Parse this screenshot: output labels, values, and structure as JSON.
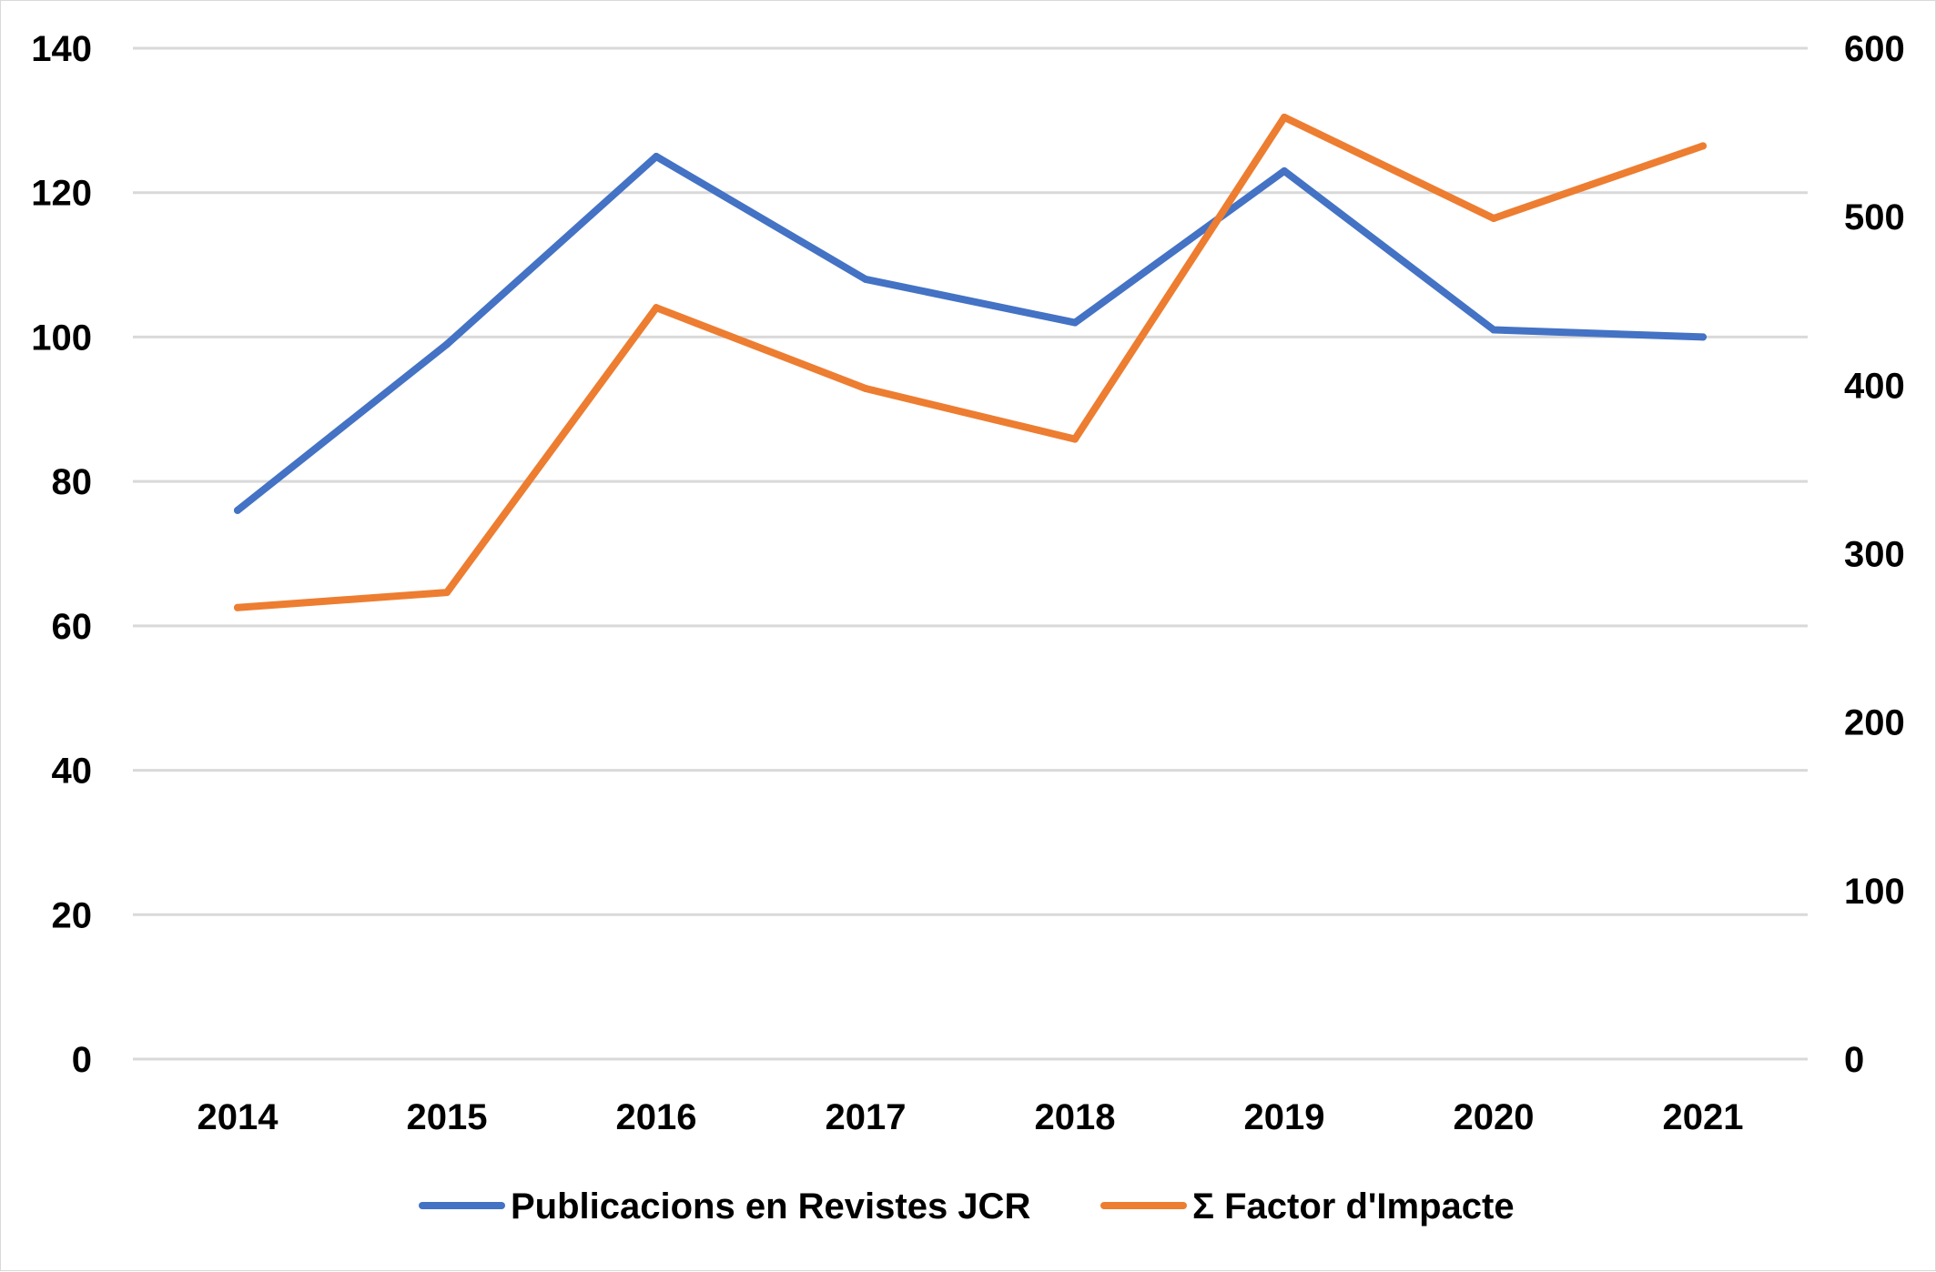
{
  "chart_data": {
    "type": "line",
    "title": "",
    "xlabel": "",
    "ylabel": "",
    "y2label": "",
    "categories": [
      "2014",
      "2015",
      "2016",
      "2017",
      "2018",
      "2019",
      "2020",
      "2021"
    ],
    "ylim": [
      0,
      140
    ],
    "y_ticks": [
      "0",
      "20",
      "40",
      "60",
      "80",
      "100",
      "120",
      "140"
    ],
    "y2lim": [
      0,
      600
    ],
    "y2_ticks": [
      "0",
      "100",
      "200",
      "300",
      "400",
      "500",
      "600"
    ],
    "grid": true,
    "legend_position": "bottom",
    "series": [
      {
        "name": "Publicacions en Revistes JCR",
        "axis": "left",
        "color": "#4472C4",
        "values": [
          76,
          99,
          125,
          108,
          102,
          123,
          101,
          100
        ]
      },
      {
        "name": "Σ Factor d'Impacte",
        "axis": "right",
        "color": "#ED7D31",
        "values": [
          268,
          277,
          446,
          398,
          368,
          559,
          499,
          542
        ]
      }
    ]
  }
}
